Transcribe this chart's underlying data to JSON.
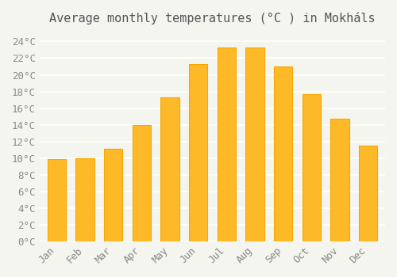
{
  "title": "Average monthly temperatures (°C ) in Mokháls",
  "months": [
    "Jan",
    "Feb",
    "Mar",
    "Apr",
    "May",
    "Jun",
    "Jul",
    "Aug",
    "Sep",
    "Oct",
    "Nov",
    "Dec"
  ],
  "values": [
    9.9,
    10.0,
    11.1,
    14.0,
    17.3,
    21.3,
    23.3,
    23.3,
    21.0,
    17.7,
    14.7,
    11.5
  ],
  "bar_color": "#FDB927",
  "bar_edge_color": "#F5A800",
  "background_color": "#F5F5F0",
  "grid_color": "#FFFFFF",
  "ylim": [
    0,
    25
  ],
  "ytick_step": 2,
  "title_fontsize": 11,
  "tick_fontsize": 9,
  "font_family": "monospace"
}
